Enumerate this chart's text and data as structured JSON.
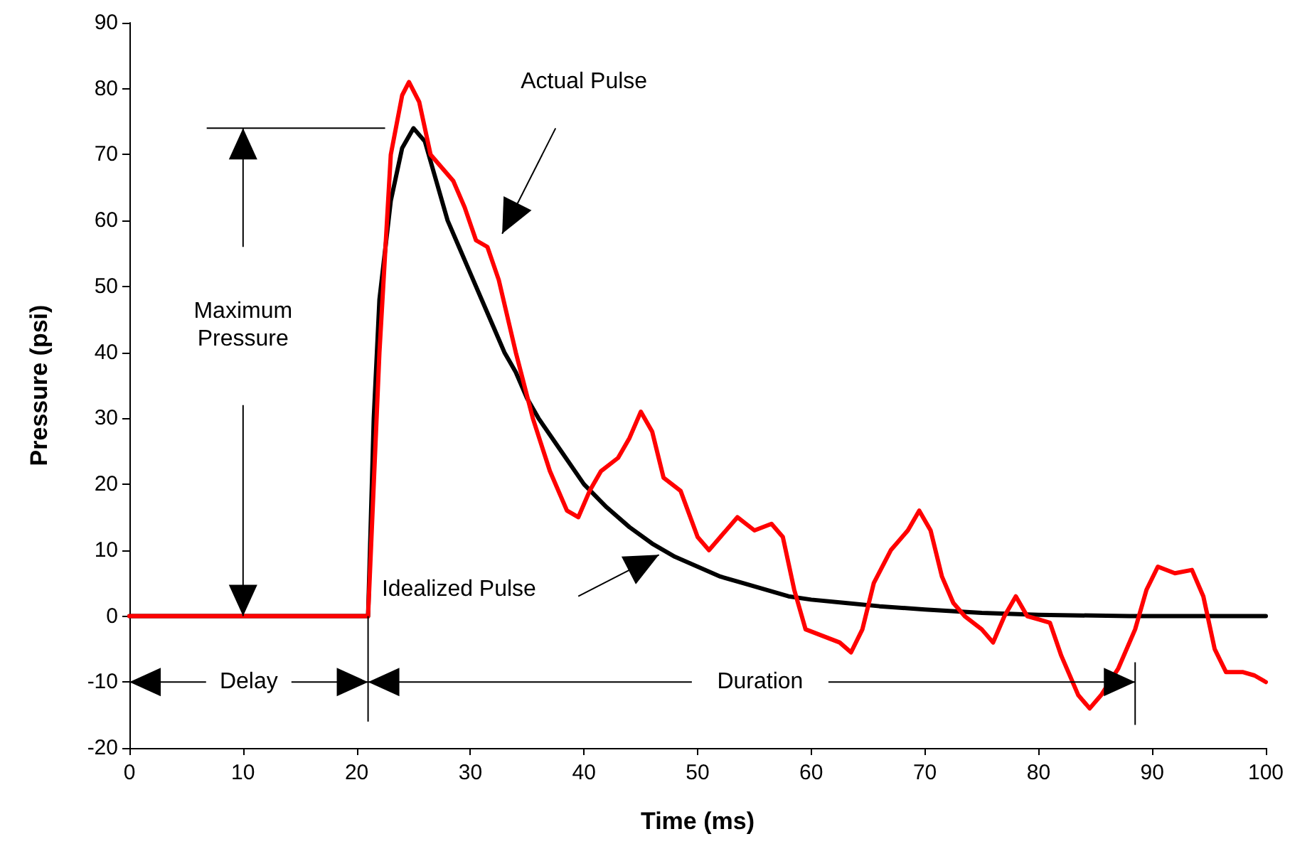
{
  "chart_data": {
    "type": "line",
    "xlabel": "Time (ms)",
    "ylabel": "Pressure (psi)",
    "xlim": [
      0,
      100
    ],
    "xticks": [
      0,
      10,
      20,
      30,
      40,
      50,
      60,
      70,
      80,
      90,
      100
    ],
    "ylim": [
      -20,
      90
    ],
    "yticks": [
      -20,
      -10,
      0,
      10,
      20,
      30,
      40,
      50,
      60,
      70,
      80,
      90
    ],
    "marker": "none",
    "line_style": "solid",
    "series": [
      {
        "color": "#000000",
        "x": [
          0,
          21,
          21.5,
          22,
          23,
          24,
          25,
          26,
          27,
          28,
          29,
          30,
          31,
          32,
          33,
          34,
          35,
          36,
          38,
          40,
          42,
          44,
          46,
          48,
          50,
          52,
          54,
          56,
          58,
          60,
          63,
          66,
          70,
          75,
          80,
          88,
          100
        ],
        "values": [
          0,
          0,
          30,
          48,
          63,
          71,
          74,
          72,
          66,
          60,
          56,
          52,
          48,
          44,
          40,
          37,
          33,
          30,
          25,
          20,
          16.5,
          13.5,
          11,
          9,
          7.5,
          6,
          5,
          4,
          3,
          2.5,
          2,
          1.5,
          1,
          0.5,
          0.2,
          0,
          0
        ]
      },
      {
        "color": "#ff0000",
        "x": [
          0,
          21,
          22,
          23,
          24,
          24.6,
          25.5,
          26.5,
          27.5,
          28.5,
          29.5,
          30.5,
          31.5,
          32.5,
          34,
          35.5,
          37,
          38.5,
          39.5,
          40.5,
          41.5,
          43,
          44,
          45,
          46,
          47,
          48.5,
          50,
          51,
          52,
          53.5,
          55,
          56.5,
          57.5,
          58.5,
          59.5,
          61,
          62.5,
          63.5,
          64.5,
          65.5,
          67,
          68.5,
          69.5,
          70.5,
          71.5,
          72.5,
          73.5,
          75,
          76,
          77,
          78,
          79,
          80,
          81,
          82,
          83.5,
          84.5,
          85.5,
          87,
          88.5,
          89.5,
          90.5,
          92,
          93.5,
          94.5,
          95.5,
          96.5,
          98,
          99,
          100
        ],
        "values": [
          0,
          0,
          40,
          70,
          79,
          81,
          78,
          70,
          68,
          66,
          62,
          57,
          56,
          51,
          40,
          30,
          22,
          16,
          15,
          19,
          22,
          24,
          27,
          31,
          28,
          21,
          19,
          12,
          10,
          12,
          15,
          13,
          14,
          12,
          4,
          -2,
          -3,
          -4,
          -5.5,
          -2,
          5,
          10,
          13,
          16,
          13,
          6,
          2,
          0,
          -2,
          -4,
          0,
          3,
          0,
          -0.5,
          -1,
          -6,
          -12,
          -14,
          -12,
          -8,
          -2,
          4,
          7.5,
          6.5,
          7,
          3,
          -5,
          -8.5,
          -8.5,
          -9,
          -10
        ]
      }
    ],
    "annotations": [
      "Actual Pulse",
      "Maximum Pressure",
      "Idealized Pulse",
      "Delay",
      "Duration"
    ]
  }
}
